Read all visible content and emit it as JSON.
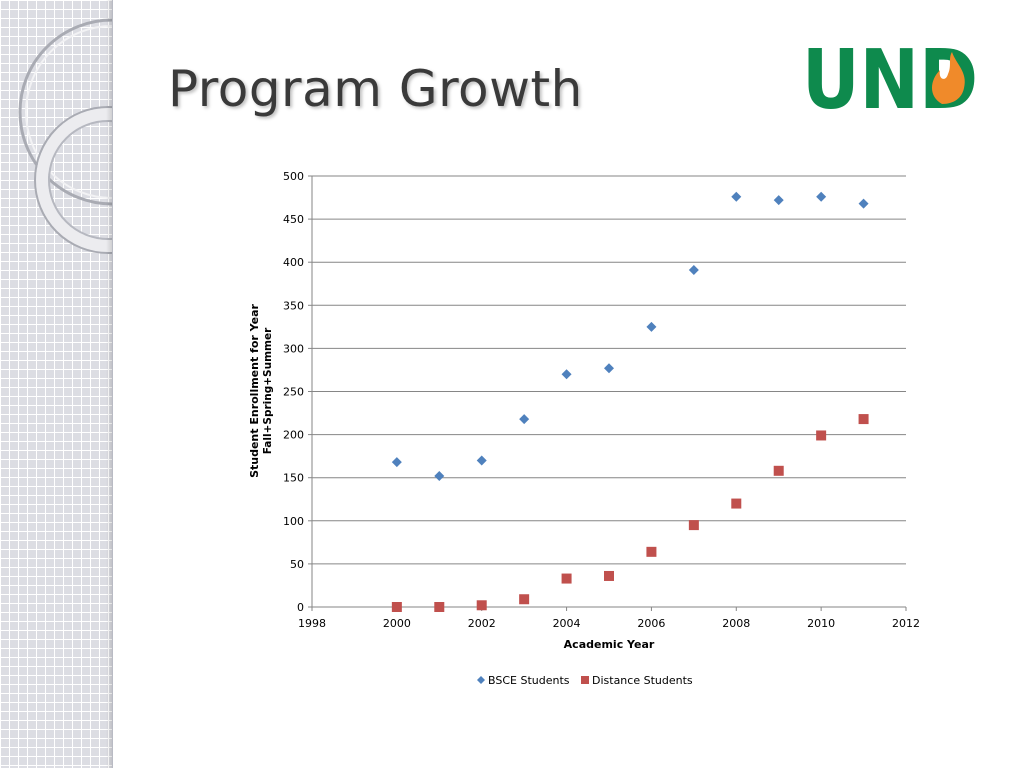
{
  "slide": {
    "title": "Program Growth",
    "logo_text": "UND",
    "brand_green": "#0e8a4d",
    "flame_orange": "#f08a2a"
  },
  "chart_data": {
    "type": "scatter",
    "title": "",
    "xlabel": "Academic Year",
    "ylabel_line1": "Student Enrollment for Year",
    "ylabel_line2": "Fall+Spring+Summer",
    "xlim": [
      1998,
      2012
    ],
    "ylim": [
      0,
      500
    ],
    "x_ticks": [
      1998,
      2000,
      2002,
      2004,
      2006,
      2008,
      2010,
      2012
    ],
    "y_ticks": [
      0,
      50,
      100,
      150,
      200,
      250,
      300,
      350,
      400,
      450,
      500
    ],
    "grid": "horizontal",
    "legend_position": "bottom",
    "series": [
      {
        "name": "BSCE Students",
        "marker": "diamond",
        "color": "#4f81bd",
        "x": [
          2000,
          2001,
          2002,
          2003,
          2004,
          2005,
          2006,
          2007,
          2008,
          2009,
          2010,
          2011
        ],
        "y": [
          168,
          152,
          170,
          218,
          270,
          277,
          325,
          391,
          476,
          472,
          476,
          468
        ]
      },
      {
        "name": "Distance Students",
        "marker": "square",
        "color": "#c0504d",
        "x": [
          2000,
          2001,
          2002,
          2003,
          2004,
          2005,
          2006,
          2007,
          2008,
          2009,
          2010,
          2011
        ],
        "y": [
          0,
          0,
          2,
          9,
          33,
          36,
          64,
          95,
          120,
          158,
          199,
          218
        ]
      }
    ]
  }
}
